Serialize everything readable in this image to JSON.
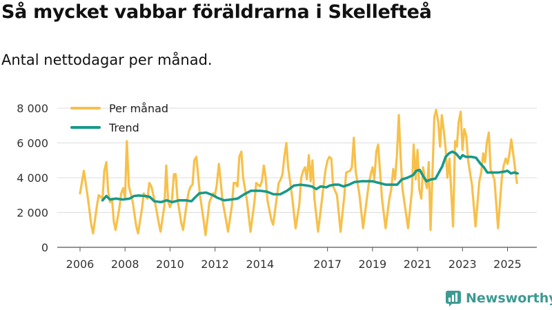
{
  "brand": {
    "name": "Newsworthy"
  },
  "chart_data": {
    "type": "line",
    "title": "Så mycket vabbar föräldrarna i Skellefteå",
    "subtitle": "Antal nettodagar per månad.",
    "xlabel": "",
    "ylabel": "",
    "ylim": [
      0,
      8000
    ],
    "yticks": [
      0,
      2000,
      4000,
      6000,
      8000
    ],
    "ytick_labels": [
      "0",
      "2 000",
      "4 000",
      "6 000",
      "8 000"
    ],
    "xticks": [
      2006,
      2008,
      2010,
      2012,
      2014,
      2017,
      2019,
      2021,
      2023,
      2025
    ],
    "xtick_labels": [
      "2006",
      "2008",
      "2010",
      "2012",
      "2014",
      "2017",
      "2019",
      "2021",
      "2023",
      "2025"
    ],
    "xlim": [
      2006.0,
      2025.6
    ],
    "grid": true,
    "legend_position": "top-left",
    "colors": {
      "monthly": "#f7c04a",
      "trend": "#17998a",
      "grid": "#dddddd",
      "axis": "#555555"
    },
    "series": [
      {
        "name": "Per månad",
        "key": "monthly",
        "points": [
          [
            2006.0,
            3100
          ],
          [
            2006.17,
            4400
          ],
          [
            2006.33,
            3000
          ],
          [
            2006.5,
            1300
          ],
          [
            2006.58,
            800
          ],
          [
            2006.75,
            2400
          ],
          [
            2006.83,
            3000
          ],
          [
            2007.0,
            2800
          ],
          [
            2007.08,
            4400
          ],
          [
            2007.17,
            4900
          ],
          [
            2007.25,
            3200
          ],
          [
            2007.33,
            2600
          ],
          [
            2007.42,
            2800
          ],
          [
            2007.5,
            1500
          ],
          [
            2007.58,
            1000
          ],
          [
            2007.75,
            2300
          ],
          [
            2007.83,
            3100
          ],
          [
            2007.92,
            3400
          ],
          [
            2008.0,
            2800
          ],
          [
            2008.08,
            6100
          ],
          [
            2008.17,
            3500
          ],
          [
            2008.33,
            2700
          ],
          [
            2008.5,
            1200
          ],
          [
            2008.58,
            800
          ],
          [
            2008.75,
            2200
          ],
          [
            2008.83,
            3100
          ],
          [
            2008.92,
            2900
          ],
          [
            2009.0,
            2800
          ],
          [
            2009.08,
            3700
          ],
          [
            2009.17,
            3500
          ],
          [
            2009.33,
            2600
          ],
          [
            2009.5,
            1400
          ],
          [
            2009.58,
            900
          ],
          [
            2009.75,
            2400
          ],
          [
            2009.83,
            4700
          ],
          [
            2009.92,
            2600
          ],
          [
            2010.0,
            2300
          ],
          [
            2010.08,
            2600
          ],
          [
            2010.17,
            4200
          ],
          [
            2010.25,
            4200
          ],
          [
            2010.33,
            2800
          ],
          [
            2010.5,
            1400
          ],
          [
            2010.58,
            1000
          ],
          [
            2010.75,
            2600
          ],
          [
            2010.83,
            3200
          ],
          [
            2010.92,
            3500
          ],
          [
            2011.0,
            3600
          ],
          [
            2011.08,
            5000
          ],
          [
            2011.17,
            5200
          ],
          [
            2011.33,
            3000
          ],
          [
            2011.5,
            1500
          ],
          [
            2011.58,
            700
          ],
          [
            2011.75,
            2600
          ],
          [
            2011.92,
            3100
          ],
          [
            2012.0,
            3000
          ],
          [
            2012.08,
            3600
          ],
          [
            2012.17,
            4800
          ],
          [
            2012.25,
            3800
          ],
          [
            2012.33,
            2700
          ],
          [
            2012.5,
            1500
          ],
          [
            2012.58,
            900
          ],
          [
            2012.75,
            2400
          ],
          [
            2012.83,
            3700
          ],
          [
            2012.92,
            3700
          ],
          [
            2013.0,
            3500
          ],
          [
            2013.08,
            5200
          ],
          [
            2013.17,
            5500
          ],
          [
            2013.25,
            4000
          ],
          [
            2013.42,
            2700
          ],
          [
            2013.58,
            900
          ],
          [
            2013.75,
            2600
          ],
          [
            2013.83,
            3700
          ],
          [
            2014.0,
            3500
          ],
          [
            2014.08,
            3800
          ],
          [
            2014.17,
            4700
          ],
          [
            2014.25,
            4000
          ],
          [
            2014.33,
            2700
          ],
          [
            2014.5,
            1600
          ],
          [
            2014.58,
            1300
          ],
          [
            2014.75,
            2900
          ],
          [
            2014.83,
            3700
          ],
          [
            2014.92,
            3900
          ],
          [
            2015.0,
            4200
          ],
          [
            2015.08,
            5200
          ],
          [
            2015.17,
            6000
          ],
          [
            2015.25,
            4600
          ],
          [
            2015.42,
            3000
          ],
          [
            2015.58,
            1100
          ],
          [
            2015.75,
            2500
          ],
          [
            2015.83,
            4000
          ],
          [
            2015.92,
            4400
          ],
          [
            2016.0,
            4600
          ],
          [
            2016.08,
            3900
          ],
          [
            2016.17,
            5300
          ],
          [
            2016.25,
            3800
          ],
          [
            2016.33,
            5000
          ],
          [
            2016.42,
            2800
          ],
          [
            2016.58,
            900
          ],
          [
            2016.75,
            2700
          ],
          [
            2016.83,
            3600
          ],
          [
            2016.92,
            4500
          ],
          [
            2017.0,
            5000
          ],
          [
            2017.08,
            5200
          ],
          [
            2017.17,
            5100
          ],
          [
            2017.25,
            3500
          ],
          [
            2017.42,
            3000
          ],
          [
            2017.58,
            900
          ],
          [
            2017.75,
            3000
          ],
          [
            2017.83,
            4300
          ],
          [
            2018.0,
            4400
          ],
          [
            2018.08,
            4600
          ],
          [
            2018.17,
            6300
          ],
          [
            2018.25,
            4400
          ],
          [
            2018.42,
            3000
          ],
          [
            2018.58,
            1100
          ],
          [
            2018.75,
            2800
          ],
          [
            2018.83,
            3600
          ],
          [
            2018.92,
            4200
          ],
          [
            2019.0,
            4600
          ],
          [
            2019.08,
            3900
          ],
          [
            2019.17,
            5500
          ],
          [
            2019.25,
            5900
          ],
          [
            2019.42,
            2800
          ],
          [
            2019.58,
            1100
          ],
          [
            2019.75,
            2800
          ],
          [
            2019.83,
            3300
          ],
          [
            2019.92,
            4500
          ],
          [
            2020.0,
            3900
          ],
          [
            2020.08,
            5200
          ],
          [
            2020.17,
            7600
          ],
          [
            2020.25,
            5200
          ],
          [
            2020.33,
            3400
          ],
          [
            2020.58,
            1100
          ],
          [
            2020.75,
            3200
          ],
          [
            2020.83,
            5900
          ],
          [
            2020.92,
            3900
          ],
          [
            2021.0,
            5600
          ],
          [
            2021.08,
            3300
          ],
          [
            2021.17,
            2800
          ],
          [
            2021.25,
            4600
          ],
          [
            2021.33,
            3900
          ],
          [
            2021.42,
            3400
          ],
          [
            2021.5,
            4900
          ],
          [
            2021.58,
            1000
          ],
          [
            2021.75,
            7500
          ],
          [
            2021.83,
            7900
          ],
          [
            2021.92,
            7200
          ],
          [
            2022.0,
            5800
          ],
          [
            2022.08,
            7600
          ],
          [
            2022.17,
            6700
          ],
          [
            2022.25,
            5700
          ],
          [
            2022.33,
            4000
          ],
          [
            2022.42,
            5100
          ],
          [
            2022.58,
            1200
          ],
          [
            2022.67,
            6100
          ],
          [
            2022.75,
            5800
          ],
          [
            2022.83,
            7200
          ],
          [
            2022.92,
            7800
          ],
          [
            2023.0,
            5600
          ],
          [
            2023.08,
            6800
          ],
          [
            2023.17,
            6400
          ],
          [
            2023.25,
            5000
          ],
          [
            2023.42,
            3600
          ],
          [
            2023.58,
            1200
          ],
          [
            2023.75,
            3800
          ],
          [
            2023.83,
            4300
          ],
          [
            2023.92,
            5400
          ],
          [
            2024.0,
            4900
          ],
          [
            2024.08,
            6000
          ],
          [
            2024.17,
            6600
          ],
          [
            2024.25,
            4500
          ],
          [
            2024.42,
            3900
          ],
          [
            2024.58,
            1100
          ],
          [
            2024.75,
            4000
          ],
          [
            2024.83,
            4700
          ],
          [
            2024.92,
            5100
          ],
          [
            2025.0,
            4800
          ],
          [
            2025.08,
            5300
          ],
          [
            2025.17,
            6200
          ],
          [
            2025.25,
            5400
          ],
          [
            2025.42,
            3700
          ]
        ]
      },
      {
        "name": "Trend",
        "key": "trend",
        "points": [
          [
            2007.0,
            2700
          ],
          [
            2007.17,
            2950
          ],
          [
            2007.33,
            2750
          ],
          [
            2007.6,
            2800
          ],
          [
            2007.9,
            2750
          ],
          [
            2008.2,
            2800
          ],
          [
            2008.4,
            2950
          ],
          [
            2008.6,
            2980
          ],
          [
            2008.9,
            2950
          ],
          [
            2009.1,
            2900
          ],
          [
            2009.3,
            2650
          ],
          [
            2009.6,
            2600
          ],
          [
            2009.85,
            2700
          ],
          [
            2010.1,
            2600
          ],
          [
            2010.4,
            2700
          ],
          [
            2010.7,
            2700
          ],
          [
            2010.95,
            2650
          ],
          [
            2011.1,
            2850
          ],
          [
            2011.3,
            3100
          ],
          [
            2011.6,
            3150
          ],
          [
            2011.9,
            3000
          ],
          [
            2012.1,
            2850
          ],
          [
            2012.4,
            2700
          ],
          [
            2012.7,
            2750
          ],
          [
            2013.0,
            2800
          ],
          [
            2013.3,
            3050
          ],
          [
            2013.6,
            3250
          ],
          [
            2014.0,
            3250
          ],
          [
            2014.3,
            3200
          ],
          [
            2014.6,
            3050
          ],
          [
            2014.9,
            3050
          ],
          [
            2015.2,
            3250
          ],
          [
            2015.5,
            3550
          ],
          [
            2015.8,
            3600
          ],
          [
            2016.1,
            3550
          ],
          [
            2016.3,
            3500
          ],
          [
            2016.5,
            3350
          ],
          [
            2016.7,
            3500
          ],
          [
            2016.95,
            3450
          ],
          [
            2017.1,
            3550
          ],
          [
            2017.3,
            3600
          ],
          [
            2017.5,
            3600
          ],
          [
            2017.7,
            3500
          ],
          [
            2017.95,
            3600
          ],
          [
            2018.2,
            3750
          ],
          [
            2018.5,
            3800
          ],
          [
            2018.8,
            3800
          ],
          [
            2019.0,
            3800
          ],
          [
            2019.3,
            3700
          ],
          [
            2019.6,
            3600
          ],
          [
            2019.9,
            3600
          ],
          [
            2020.1,
            3600
          ],
          [
            2020.3,
            3900
          ],
          [
            2020.55,
            4000
          ],
          [
            2020.8,
            4150
          ],
          [
            2020.95,
            4400
          ],
          [
            2021.1,
            4450
          ],
          [
            2021.25,
            4100
          ],
          [
            2021.4,
            3800
          ],
          [
            2021.6,
            3900
          ],
          [
            2021.8,
            3950
          ],
          [
            2021.95,
            4300
          ],
          [
            2022.1,
            4650
          ],
          [
            2022.25,
            5200
          ],
          [
            2022.4,
            5400
          ],
          [
            2022.55,
            5500
          ],
          [
            2022.7,
            5400
          ],
          [
            2022.8,
            5250
          ],
          [
            2022.9,
            5100
          ],
          [
            2023.0,
            5300
          ],
          [
            2023.15,
            5200
          ],
          [
            2023.4,
            5200
          ],
          [
            2023.6,
            5150
          ],
          [
            2023.8,
            4800
          ],
          [
            2023.95,
            4600
          ],
          [
            2024.1,
            4300
          ],
          [
            2024.3,
            4300
          ],
          [
            2024.6,
            4300
          ],
          [
            2024.85,
            4350
          ],
          [
            2025.0,
            4400
          ],
          [
            2025.15,
            4250
          ],
          [
            2025.3,
            4300
          ],
          [
            2025.45,
            4250
          ]
        ]
      }
    ]
  }
}
